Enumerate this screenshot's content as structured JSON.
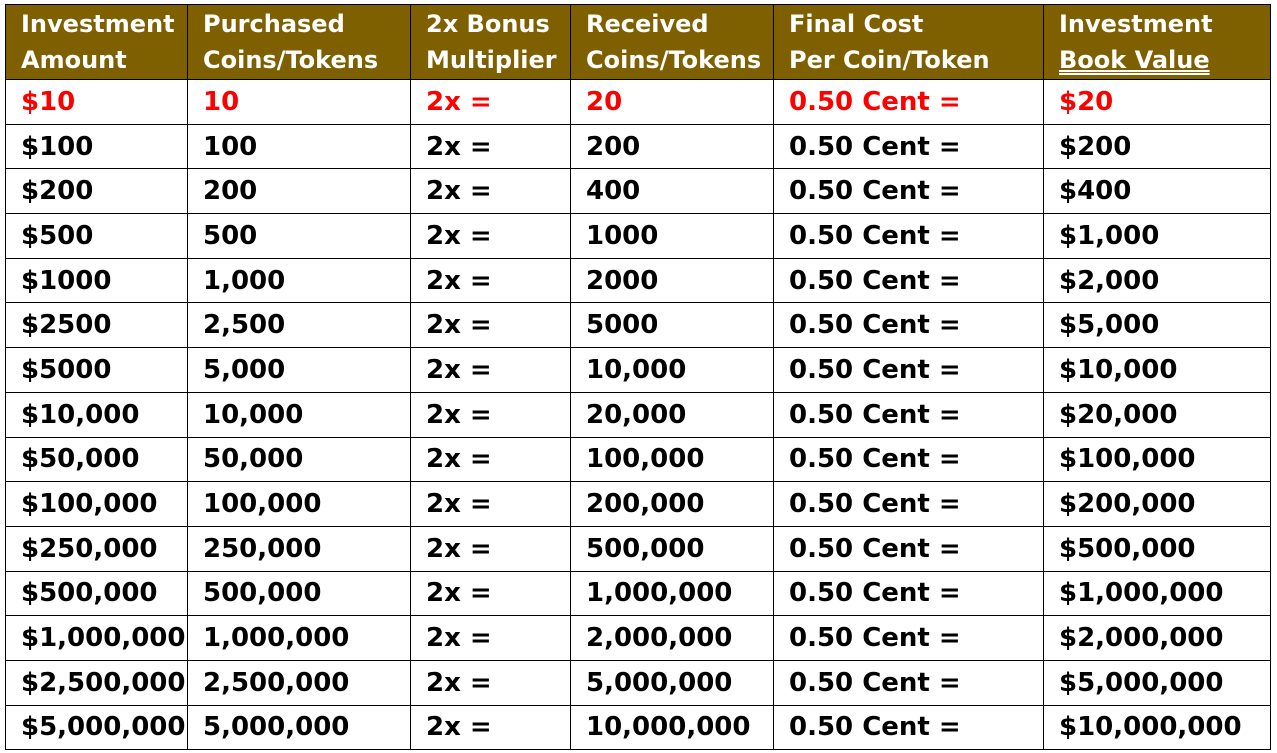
{
  "colors": {
    "header_background": "#7f6000",
    "header_text": "#ffffff",
    "highlight_text": "#ff0000",
    "body_text": "#000000"
  },
  "table": {
    "headers": [
      {
        "line1": "Investment",
        "line2": "Amount"
      },
      {
        "line1": "Purchased",
        "line2": "Coins/Tokens"
      },
      {
        "line1": "2x Bonus",
        "line2": "Multiplier"
      },
      {
        "line1": "Received",
        "line2": "Coins/Tokens"
      },
      {
        "line1": "Final Cost",
        "line2": "Per Coin/Token"
      },
      {
        "line1": "Investment",
        "line2": "Book  Value"
      }
    ],
    "rows": [
      [
        "$10",
        "10",
        "2x =",
        "20",
        "0.50 Cent =",
        "$20"
      ],
      [
        "$100",
        "100",
        "2x =",
        "200",
        "0.50 Cent =",
        "$200"
      ],
      [
        "$200",
        "200",
        "2x =",
        "400",
        "0.50 Cent =",
        "$400"
      ],
      [
        "$500",
        "500",
        "2x =",
        "1000",
        "0.50 Cent =",
        "$1,000"
      ],
      [
        "$1000",
        "1,000",
        "2x =",
        "2000",
        "0.50 Cent =",
        "$2,000"
      ],
      [
        "$2500",
        "2,500",
        "2x =",
        "5000",
        "0.50 Cent =",
        "$5,000"
      ],
      [
        "$5000",
        "5,000",
        "2x =",
        "10,000",
        "0.50 Cent =",
        "$10,000"
      ],
      [
        "$10,000",
        "10,000",
        "2x =",
        "20,000",
        "0.50 Cent =",
        "$20,000"
      ],
      [
        "$50,000",
        "50,000",
        "2x =",
        "100,000",
        "0.50 Cent =",
        "$100,000"
      ],
      [
        "$100,000",
        "100,000",
        "2x =",
        "200,000",
        "0.50 Cent =",
        "$200,000"
      ],
      [
        "$250,000",
        "250,000",
        "2x =",
        "500,000",
        "0.50 Cent =",
        "$500,000"
      ],
      [
        "$500,000",
        "500,000",
        "2x =",
        "1,000,000",
        "0.50 Cent =",
        "$1,000,000"
      ],
      [
        "$1,000,000",
        "1,000,000",
        "2x =",
        "2,000,000",
        "0.50 Cent =",
        "$2,000,000"
      ],
      [
        "$2,500,000",
        "2,500,000",
        "2x =",
        "5,000,000",
        "0.50 Cent =",
        "$5,000,000"
      ],
      [
        "$5,000,000",
        "5,000,000",
        "2x =",
        "10,000,000",
        "0.50 Cent =",
        "$10,000,000"
      ]
    ]
  }
}
